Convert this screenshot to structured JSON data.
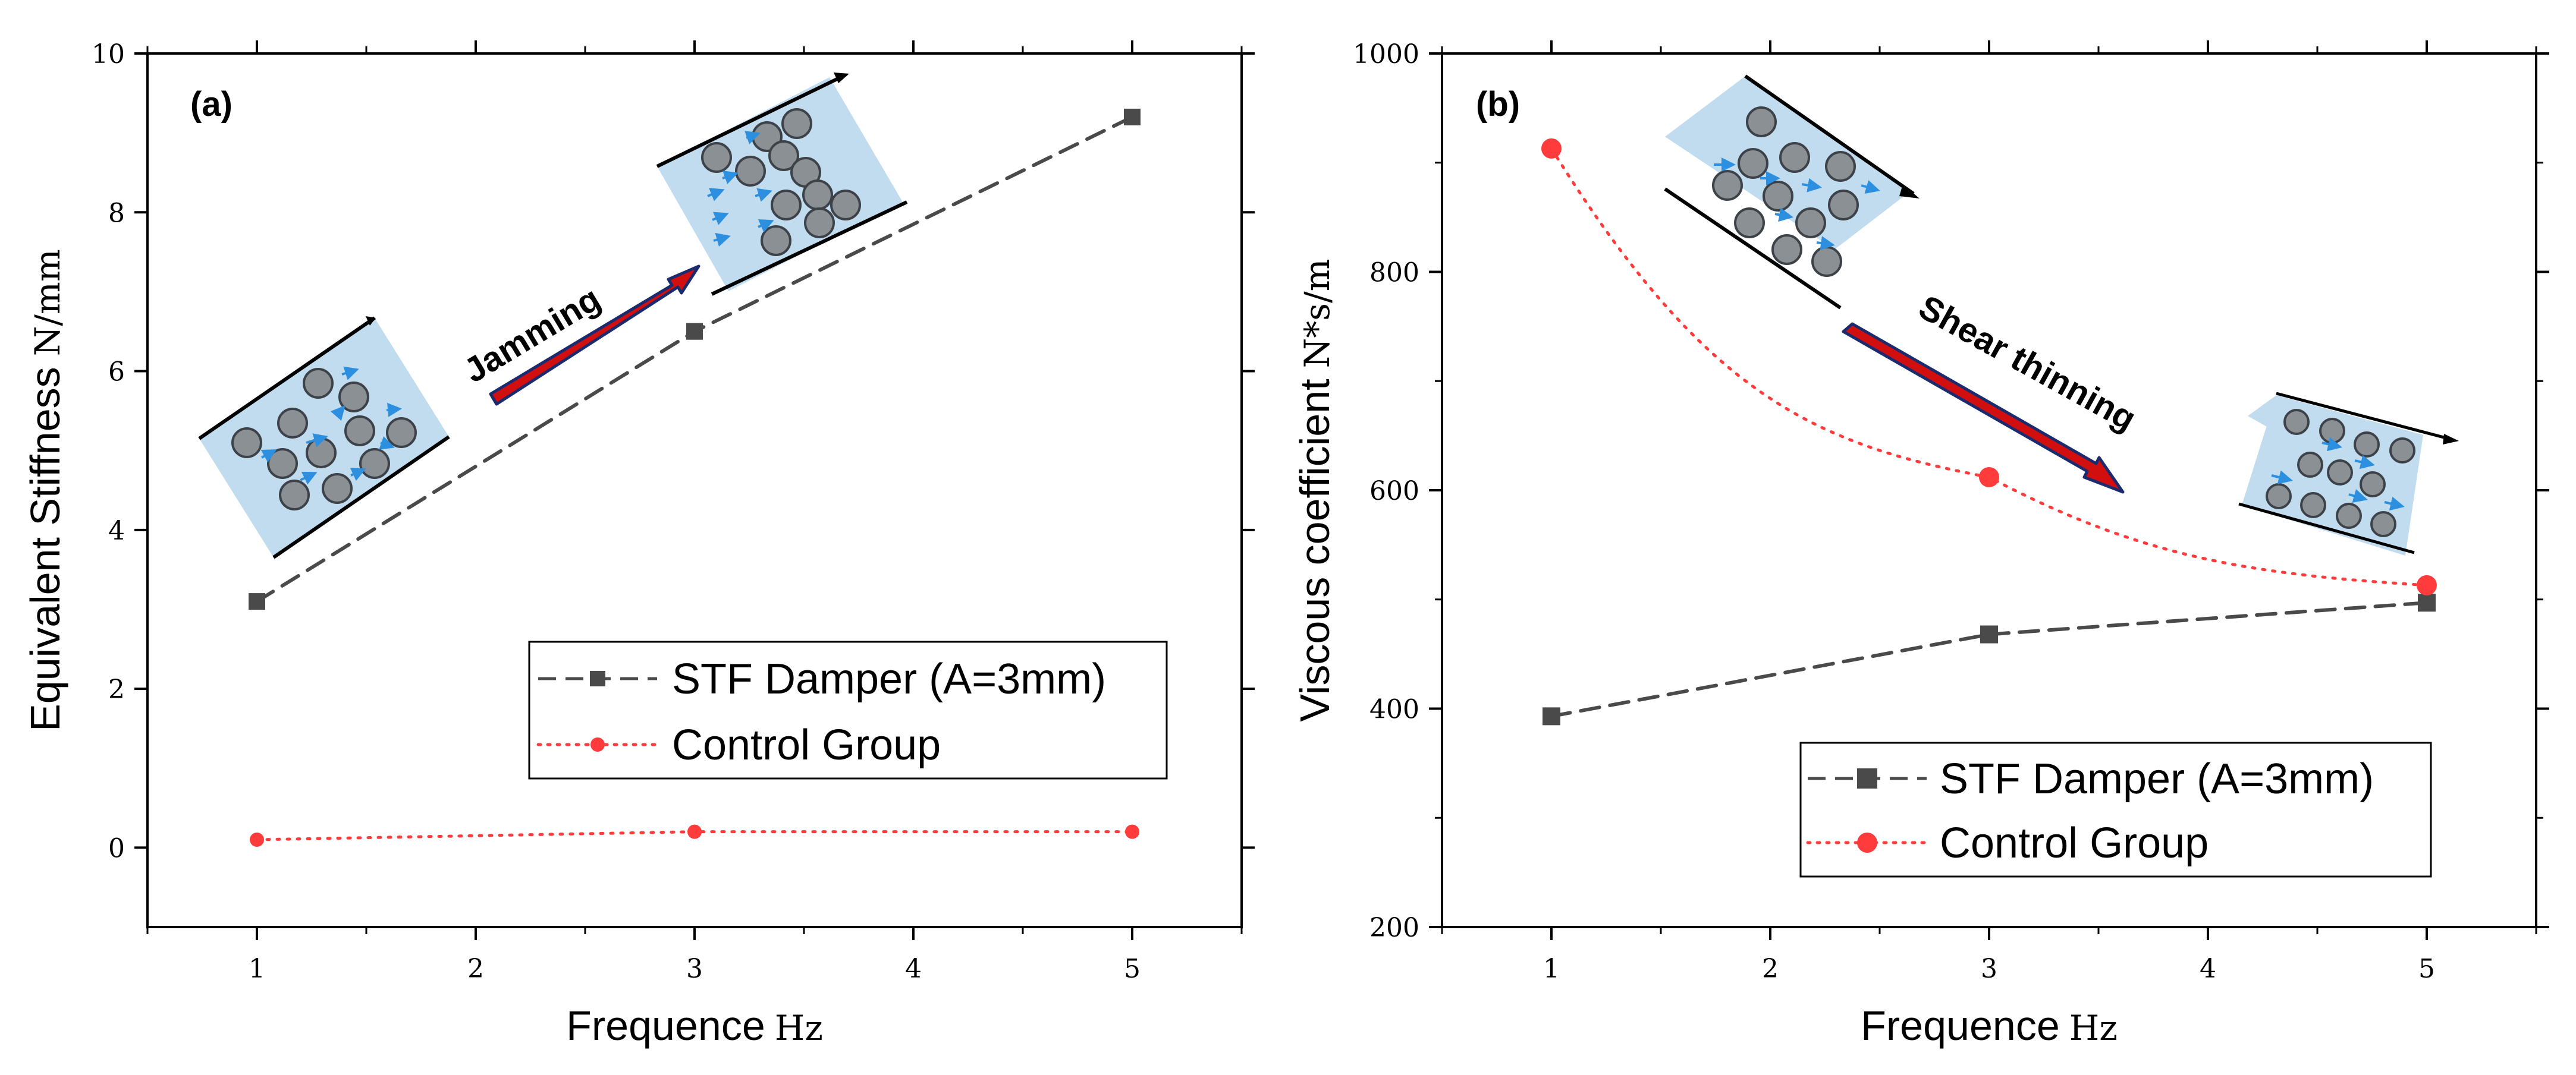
{
  "colors": {
    "stf": "#4a4a4a",
    "control": "#ff3b3b",
    "arrow_fill": "#d10f0f",
    "arrow_edge": "#1c2a6e",
    "cell_fill": "#c2dcef",
    "particle_fill": "#8b9095",
    "particle_edge": "#3c4248",
    "flow_arrow": "#2d8fe0"
  },
  "chart_data": [
    {
      "id": "a",
      "type": "line",
      "panel_label": "(a)",
      "xlabel": "Frequence",
      "xunit": "Hz",
      "ylabel": "Equivalent Stiffness",
      "yunit": "N/mm",
      "xlim": [
        0.5,
        5.5
      ],
      "ylim": [
        -1,
        10
      ],
      "xticks": [
        1,
        2,
        3,
        4,
        5
      ],
      "yticks": [
        0,
        2,
        4,
        6,
        8,
        10
      ],
      "legend_position": "lower-right",
      "series": [
        {
          "name": "STF Damper (A=3mm)",
          "marker": "square",
          "style": "dashed",
          "x": [
            1,
            3,
            5
          ],
          "y": [
            3.1,
            6.5,
            9.2
          ]
        },
        {
          "name": "Control Group",
          "marker": "circle",
          "style": "dotted",
          "x": [
            1,
            3,
            5
          ],
          "y": [
            0.1,
            0.2,
            0.2
          ]
        }
      ],
      "annotation": "Jamming"
    },
    {
      "id": "b",
      "type": "line",
      "panel_label": "(b)",
      "xlabel": "Frequence",
      "xunit": "Hz",
      "ylabel": "Viscous coefficient",
      "yunit": "N*s/m",
      "xlim": [
        0.5,
        5.5
      ],
      "ylim": [
        200,
        1000
      ],
      "xticks": [
        1,
        2,
        3,
        4,
        5
      ],
      "yticks": [
        200,
        400,
        600,
        800,
        1000
      ],
      "legend_position": "lower-right",
      "series": [
        {
          "name": "STF Damper (A=3mm)",
          "marker": "square",
          "style": "dashed",
          "x": [
            1,
            3,
            5
          ],
          "y": [
            393,
            468,
            497
          ]
        },
        {
          "name": "Control Group",
          "marker": "circle",
          "style": "dotted",
          "x": [
            1,
            3,
            5
          ],
          "y": [
            913,
            612,
            513
          ]
        }
      ],
      "annotation": "Shear thinning"
    }
  ]
}
